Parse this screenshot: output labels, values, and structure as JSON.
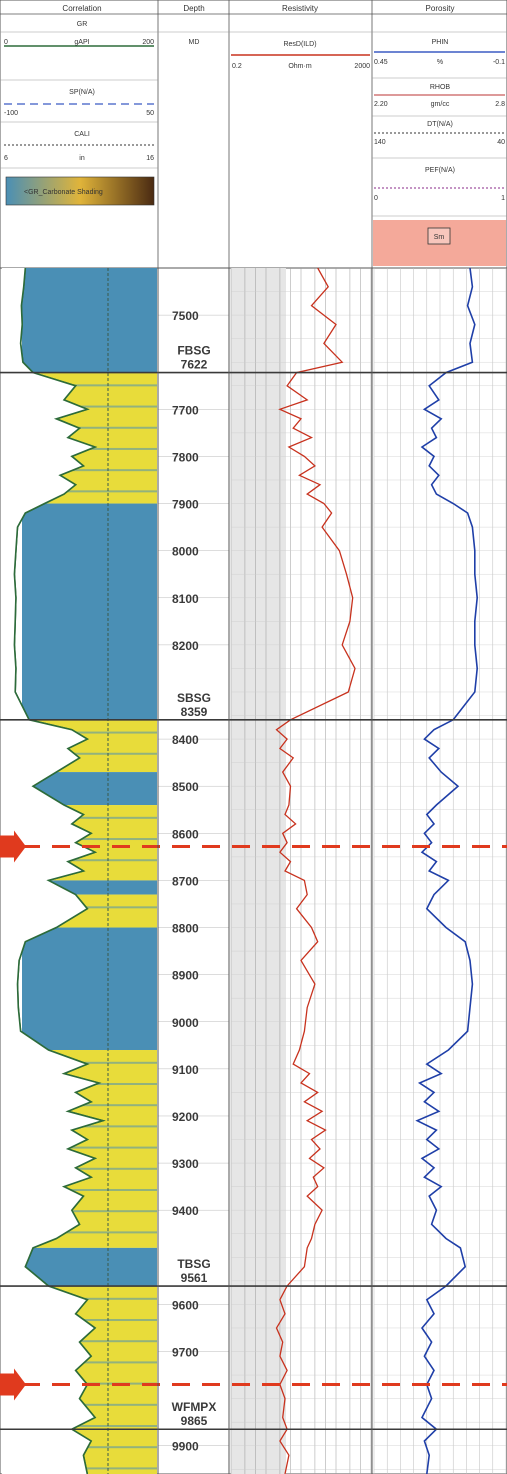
{
  "header": {
    "tracks": [
      {
        "title": "Correlation"
      },
      {
        "title": "Depth"
      },
      {
        "title": "Resistivity"
      },
      {
        "title": "Porosity"
      }
    ],
    "correlation": {
      "gr": {
        "name": "GR",
        "unit": "gAPI",
        "min": "0",
        "max": "200",
        "color": "#2d6b3a"
      },
      "sp": {
        "name": "SP(N/A)",
        "min": "-100",
        "max": "50",
        "color": "#3b5bc4"
      },
      "cali": {
        "name": "CALI",
        "unit": "in",
        "min": "6",
        "max": "16",
        "color": "#333333"
      },
      "shading": {
        "label": "<GR_Carbonate Shading"
      }
    },
    "depth": {
      "name": "MD"
    },
    "resistivity": {
      "name": "ResD(ILD)",
      "unit": "Ohm·m",
      "min": "0.2",
      "max": "2000",
      "color": "#c8321e"
    },
    "porosity": {
      "nphi": {
        "name": "PHIN",
        "unit": "%",
        "min": "0.45",
        "max": "-0.1",
        "color": "#3b5bc4"
      },
      "rhob": {
        "name": "RHOB",
        "unit": "gm/cc",
        "min": "2.20",
        "max": "2.8",
        "color": "#b33"
      },
      "dt": {
        "name": "DT(N/A)",
        "min": "140",
        "max": "40"
      },
      "pef": {
        "name": "PEF(N/A)",
        "min": "0",
        "max": "1"
      },
      "fill": {
        "label": "Sm",
        "color": "#f4a99a"
      }
    }
  },
  "colors": {
    "shale": "#e8dc3a",
    "carbonate": "#4a8fb5",
    "gr_curve": "#2d6b3a",
    "resistivity_curve": "#c8321e",
    "porosity_curve": "#1f3fa8",
    "marker_arrow": "#e03a1e",
    "formation_line": "#3a3a3a"
  },
  "chart_data": {
    "type": "well-log",
    "depth_axis": {
      "name": "MD",
      "min": 7400,
      "max": 9960,
      "direction": "down"
    },
    "depth_ticks": [
      7500,
      7700,
      7800,
      7900,
      8000,
      8100,
      8200,
      8400,
      8500,
      8600,
      8700,
      8800,
      8900,
      9000,
      9100,
      9200,
      9300,
      9400,
      9600,
      9700,
      9900
    ],
    "formation_tops": [
      {
        "name": "FBSG",
        "depth": 7622
      },
      {
        "name": "SBSG",
        "depth": 8359
      },
      {
        "name": "TBSG",
        "depth": 9561
      },
      {
        "name": "WFMPX",
        "depth": 9865
      }
    ],
    "marker_depths": [
      8628,
      9770
    ],
    "lithology_intervals": [
      {
        "top": 7400,
        "base": 7622,
        "lith": "carbonate"
      },
      {
        "top": 7622,
        "base": 7900,
        "lith": "shale"
      },
      {
        "top": 7900,
        "base": 8359,
        "lith": "carbonate"
      },
      {
        "top": 8359,
        "base": 8470,
        "lith": "shale"
      },
      {
        "top": 8470,
        "base": 8540,
        "lith": "carbonate"
      },
      {
        "top": 8540,
        "base": 8700,
        "lith": "shale"
      },
      {
        "top": 8700,
        "base": 8730,
        "lith": "carbonate"
      },
      {
        "top": 8730,
        "base": 8800,
        "lith": "shale"
      },
      {
        "top": 8800,
        "base": 9060,
        "lith": "carbonate"
      },
      {
        "top": 9060,
        "base": 9480,
        "lith": "shale"
      },
      {
        "top": 9480,
        "base": 9561,
        "lith": "carbonate"
      },
      {
        "top": 9561,
        "base": 9960,
        "lith": "shale"
      }
    ],
    "gr_log_gapi": [
      [
        7400,
        30
      ],
      [
        7440,
        28
      ],
      [
        7480,
        25
      ],
      [
        7520,
        26
      ],
      [
        7560,
        24
      ],
      [
        7600,
        27
      ],
      [
        7622,
        40
      ],
      [
        7650,
        95
      ],
      [
        7680,
        80
      ],
      [
        7700,
        110
      ],
      [
        7720,
        70
      ],
      [
        7740,
        100
      ],
      [
        7760,
        85
      ],
      [
        7780,
        120
      ],
      [
        7800,
        90
      ],
      [
        7820,
        105
      ],
      [
        7840,
        75
      ],
      [
        7860,
        95
      ],
      [
        7880,
        80
      ],
      [
        7900,
        55
      ],
      [
        7920,
        30
      ],
      [
        7950,
        20
      ],
      [
        8000,
        18
      ],
      [
        8050,
        16
      ],
      [
        8100,
        18
      ],
      [
        8150,
        17
      ],
      [
        8200,
        16
      ],
      [
        8250,
        18
      ],
      [
        8300,
        17
      ],
      [
        8359,
        35
      ],
      [
        8380,
        90
      ],
      [
        8400,
        110
      ],
      [
        8420,
        85
      ],
      [
        8440,
        100
      ],
      [
        8470,
        70
      ],
      [
        8500,
        40
      ],
      [
        8540,
        80
      ],
      [
        8560,
        105
      ],
      [
        8580,
        90
      ],
      [
        8600,
        115
      ],
      [
        8620,
        95
      ],
      [
        8640,
        120
      ],
      [
        8660,
        85
      ],
      [
        8680,
        105
      ],
      [
        8700,
        60
      ],
      [
        8730,
        95
      ],
      [
        8760,
        110
      ],
      [
        8800,
        70
      ],
      [
        8830,
        30
      ],
      [
        8870,
        22
      ],
      [
        8920,
        20
      ],
      [
        8970,
        21
      ],
      [
        9020,
        24
      ],
      [
        9060,
        60
      ],
      [
        9090,
        110
      ],
      [
        9110,
        80
      ],
      [
        9130,
        125
      ],
      [
        9150,
        95
      ],
      [
        9170,
        115
      ],
      [
        9190,
        85
      ],
      [
        9210,
        130
      ],
      [
        9230,
        90
      ],
      [
        9250,
        110
      ],
      [
        9270,
        85
      ],
      [
        9290,
        120
      ],
      [
        9310,
        95
      ],
      [
        9330,
        115
      ],
      [
        9350,
        80
      ],
      [
        9370,
        105
      ],
      [
        9400,
        90
      ],
      [
        9430,
        100
      ],
      [
        9460,
        70
      ],
      [
        9480,
        40
      ],
      [
        9520,
        30
      ],
      [
        9561,
        60
      ],
      [
        9590,
        110
      ],
      [
        9620,
        95
      ],
      [
        9650,
        120
      ],
      [
        9680,
        100
      ],
      [
        9710,
        115
      ],
      [
        9740,
        95
      ],
      [
        9770,
        110
      ],
      [
        9800,
        100
      ],
      [
        9840,
        120
      ],
      [
        9865,
        90
      ],
      [
        9890,
        115
      ],
      [
        9920,
        105
      ],
      [
        9960,
        110
      ]
    ],
    "resd_ohmm": [
      [
        7400,
        60
      ],
      [
        7440,
        120
      ],
      [
        7480,
        40
      ],
      [
        7520,
        200
      ],
      [
        7560,
        90
      ],
      [
        7600,
        300
      ],
      [
        7622,
        15
      ],
      [
        7650,
        8
      ],
      [
        7680,
        30
      ],
      [
        7700,
        5
      ],
      [
        7720,
        20
      ],
      [
        7740,
        12
      ],
      [
        7760,
        40
      ],
      [
        7780,
        9
      ],
      [
        7800,
        25
      ],
      [
        7820,
        50
      ],
      [
        7840,
        18
      ],
      [
        7860,
        70
      ],
      [
        7880,
        30
      ],
      [
        7900,
        90
      ],
      [
        7920,
        150
      ],
      [
        7950,
        80
      ],
      [
        8000,
        250
      ],
      [
        8050,
        400
      ],
      [
        8100,
        600
      ],
      [
        8150,
        500
      ],
      [
        8200,
        300
      ],
      [
        8250,
        700
      ],
      [
        8300,
        450
      ],
      [
        8359,
        10
      ],
      [
        8380,
        4
      ],
      [
        8400,
        8
      ],
      [
        8420,
        5
      ],
      [
        8440,
        12
      ],
      [
        8470,
        6
      ],
      [
        8500,
        10
      ],
      [
        8540,
        9
      ],
      [
        8560,
        7
      ],
      [
        8580,
        14
      ],
      [
        8600,
        6
      ],
      [
        8620,
        8
      ],
      [
        8640,
        5
      ],
      [
        8660,
        10
      ],
      [
        8680,
        7
      ],
      [
        8700,
        25
      ],
      [
        8730,
        30
      ],
      [
        8760,
        15
      ],
      [
        8800,
        40
      ],
      [
        8830,
        60
      ],
      [
        8870,
        20
      ],
      [
        8920,
        50
      ],
      [
        8970,
        30
      ],
      [
        9020,
        25
      ],
      [
        9060,
        18
      ],
      [
        9090,
        12
      ],
      [
        9110,
        35
      ],
      [
        9130,
        20
      ],
      [
        9150,
        60
      ],
      [
        9170,
        25
      ],
      [
        9190,
        80
      ],
      [
        9210,
        30
      ],
      [
        9230,
        100
      ],
      [
        9250,
        40
      ],
      [
        9270,
        70
      ],
      [
        9290,
        35
      ],
      [
        9310,
        90
      ],
      [
        9330,
        45
      ],
      [
        9350,
        60
      ],
      [
        9370,
        30
      ],
      [
        9400,
        80
      ],
      [
        9430,
        50
      ],
      [
        9460,
        40
      ],
      [
        9480,
        30
      ],
      [
        9520,
        25
      ],
      [
        9561,
        8
      ],
      [
        9590,
        5
      ],
      [
        9620,
        7
      ],
      [
        9650,
        4
      ],
      [
        9680,
        6
      ],
      [
        9710,
        5
      ],
      [
        9740,
        8
      ],
      [
        9770,
        5
      ],
      [
        9800,
        7
      ],
      [
        9840,
        6
      ],
      [
        9865,
        8
      ],
      [
        9890,
        5
      ],
      [
        9920,
        9
      ],
      [
        9960,
        7
      ]
    ],
    "nphi_frac": [
      [
        7400,
        0.05
      ],
      [
        7440,
        0.04
      ],
      [
        7480,
        0.06
      ],
      [
        7520,
        0.03
      ],
      [
        7560,
        0.05
      ],
      [
        7600,
        0.04
      ],
      [
        7622,
        0.15
      ],
      [
        7650,
        0.22
      ],
      [
        7680,
        0.18
      ],
      [
        7700,
        0.24
      ],
      [
        7720,
        0.17
      ],
      [
        7740,
        0.21
      ],
      [
        7760,
        0.19
      ],
      [
        7780,
        0.25
      ],
      [
        7800,
        0.2
      ],
      [
        7820,
        0.22
      ],
      [
        7840,
        0.18
      ],
      [
        7860,
        0.21
      ],
      [
        7880,
        0.19
      ],
      [
        7900,
        0.12
      ],
      [
        7920,
        0.06
      ],
      [
        7950,
        0.04
      ],
      [
        8000,
        0.03
      ],
      [
        8050,
        0.03
      ],
      [
        8100,
        0.02
      ],
      [
        8150,
        0.03
      ],
      [
        8200,
        0.03
      ],
      [
        8250,
        0.02
      ],
      [
        8300,
        0.03
      ],
      [
        8359,
        0.12
      ],
      [
        8380,
        0.2
      ],
      [
        8400,
        0.24
      ],
      [
        8420,
        0.18
      ],
      [
        8440,
        0.22
      ],
      [
        8470,
        0.17
      ],
      [
        8500,
        0.1
      ],
      [
        8540,
        0.19
      ],
      [
        8560,
        0.23
      ],
      [
        8580,
        0.2
      ],
      [
        8600,
        0.24
      ],
      [
        8620,
        0.21
      ],
      [
        8640,
        0.25
      ],
      [
        8660,
        0.19
      ],
      [
        8680,
        0.22
      ],
      [
        8700,
        0.14
      ],
      [
        8730,
        0.2
      ],
      [
        8760,
        0.23
      ],
      [
        8800,
        0.15
      ],
      [
        8830,
        0.07
      ],
      [
        8870,
        0.05
      ],
      [
        8920,
        0.04
      ],
      [
        8970,
        0.05
      ],
      [
        9020,
        0.06
      ],
      [
        9060,
        0.14
      ],
      [
        9090,
        0.23
      ],
      [
        9110,
        0.17
      ],
      [
        9130,
        0.26
      ],
      [
        9150,
        0.2
      ],
      [
        9170,
        0.24
      ],
      [
        9190,
        0.18
      ],
      [
        9210,
        0.27
      ],
      [
        9230,
        0.19
      ],
      [
        9250,
        0.23
      ],
      [
        9270,
        0.18
      ],
      [
        9290,
        0.25
      ],
      [
        9310,
        0.2
      ],
      [
        9330,
        0.24
      ],
      [
        9350,
        0.17
      ],
      [
        9370,
        0.22
      ],
      [
        9400,
        0.19
      ],
      [
        9430,
        0.21
      ],
      [
        9460,
        0.15
      ],
      [
        9480,
        0.09
      ],
      [
        9520,
        0.07
      ],
      [
        9561,
        0.15
      ],
      [
        9590,
        0.23
      ],
      [
        9620,
        0.2
      ],
      [
        9650,
        0.25
      ],
      [
        9680,
        0.21
      ],
      [
        9710,
        0.24
      ],
      [
        9740,
        0.2
      ],
      [
        9770,
        0.23
      ],
      [
        9800,
        0.21
      ],
      [
        9840,
        0.25
      ],
      [
        9865,
        0.19
      ],
      [
        9890,
        0.24
      ],
      [
        9920,
        0.22
      ],
      [
        9960,
        0.23
      ]
    ]
  }
}
